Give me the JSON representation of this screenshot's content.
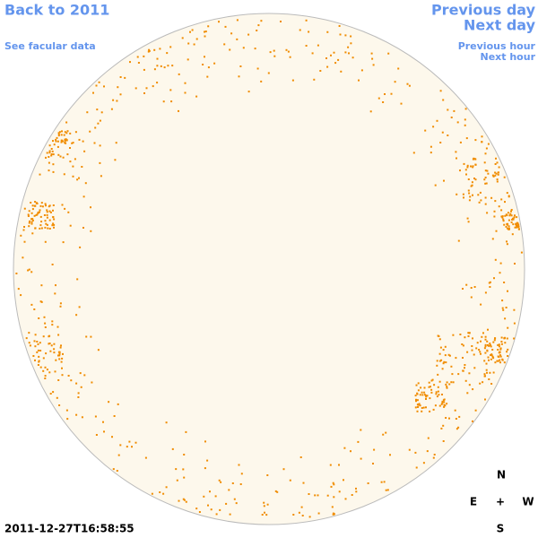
{
  "nav": {
    "back": "Back to 2011",
    "facular_data": "See facular data",
    "previous_day": "Previous day",
    "next_day": "Next day",
    "previous_hour": "Previous hour",
    "next_hour": "Next hour"
  },
  "timestamp": "2011-12-27T16:58:55",
  "compass": {
    "north": "N",
    "east": "E",
    "center": "+",
    "west": "W",
    "south": "S"
  }
}
